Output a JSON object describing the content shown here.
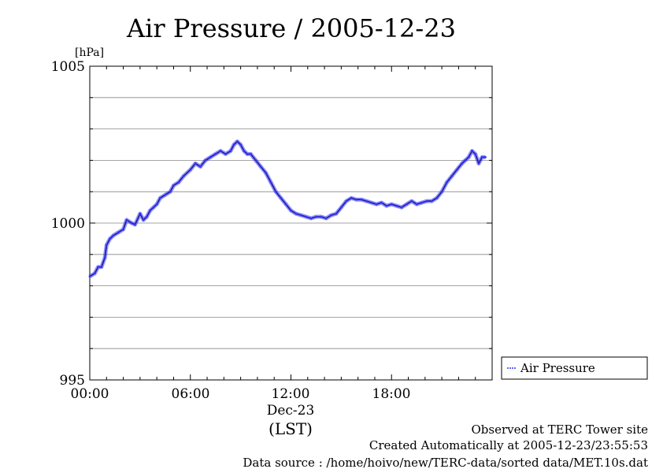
{
  "chart_data": {
    "type": "line",
    "title": "Air Pressure / 2005-12-23",
    "ylabel": "[hPa]",
    "xlabel_date": "Dec-23",
    "xlabel_tz": "(LST)",
    "ylim": [
      995,
      1005
    ],
    "xlim_hours": [
      0,
      24
    ],
    "y_ticks": [
      "995",
      "1000",
      "1005"
    ],
    "x_ticks": [
      "00:00",
      "06:00",
      "12:00",
      "18:00"
    ],
    "grid": true,
    "legend_position": "right",
    "series": [
      {
        "name": "Air Pressure",
        "color": "#3333ff",
        "x_hours": [
          0,
          0.3,
          0.5,
          0.7,
          0.9,
          1.0,
          1.2,
          1.4,
          1.7,
          2.0,
          2.2,
          2.5,
          2.7,
          3.0,
          3.2,
          3.4,
          3.6,
          3.8,
          4.0,
          4.2,
          4.5,
          4.8,
          5.0,
          5.3,
          5.6,
          6.0,
          6.3,
          6.6,
          6.9,
          7.2,
          7.5,
          7.8,
          8.1,
          8.4,
          8.6,
          8.8,
          9.0,
          9.2,
          9.4,
          9.6,
          9.9,
          10.2,
          10.5,
          10.8,
          11.1,
          11.4,
          11.7,
          12.0,
          12.3,
          12.6,
          12.9,
          13.2,
          13.5,
          13.8,
          14.1,
          14.4,
          14.7,
          15.0,
          15.3,
          15.6,
          15.9,
          16.2,
          16.5,
          16.8,
          17.1,
          17.4,
          17.7,
          18.0,
          18.3,
          18.6,
          18.9,
          19.2,
          19.5,
          19.8,
          20.1,
          20.4,
          20.7,
          21.0,
          21.3,
          21.6,
          21.9,
          22.2,
          22.4,
          22.6,
          22.8,
          23.0,
          23.2,
          23.4,
          23.6
        ],
        "values": [
          998.3,
          998.4,
          998.6,
          998.6,
          998.9,
          999.3,
          999.5,
          999.6,
          999.7,
          999.8,
          1000.1,
          1000.0,
          999.95,
          1000.3,
          1000.1,
          1000.2,
          1000.4,
          1000.5,
          1000.6,
          1000.8,
          1000.9,
          1001.0,
          1001.2,
          1001.3,
          1001.5,
          1001.7,
          1001.9,
          1001.8,
          1002.0,
          1002.1,
          1002.2,
          1002.3,
          1002.2,
          1002.3,
          1002.5,
          1002.6,
          1002.5,
          1002.3,
          1002.2,
          1002.2,
          1002.0,
          1001.8,
          1001.6,
          1001.3,
          1001.0,
          1000.8,
          1000.6,
          1000.4,
          1000.3,
          1000.25,
          1000.2,
          1000.15,
          1000.2,
          1000.2,
          1000.15,
          1000.25,
          1000.3,
          1000.5,
          1000.7,
          1000.8,
          1000.75,
          1000.75,
          1000.7,
          1000.65,
          1000.6,
          1000.65,
          1000.55,
          1000.6,
          1000.55,
          1000.5,
          1000.6,
          1000.7,
          1000.6,
          1000.65,
          1000.7,
          1000.7,
          1000.8,
          1001.0,
          1001.3,
          1001.5,
          1001.7,
          1001.9,
          1002.0,
          1002.1,
          1002.3,
          1002.2,
          1001.9,
          1002.1,
          1002.1
        ]
      }
    ]
  },
  "footer": {
    "line1": "Observed at TERC Tower site",
    "line2": "Created Automatically at 2005-12-23/23:55:53",
    "line3": "Data source : /home/hoivo/new/TERC-data/sorted  data/MET.10s.dat"
  }
}
